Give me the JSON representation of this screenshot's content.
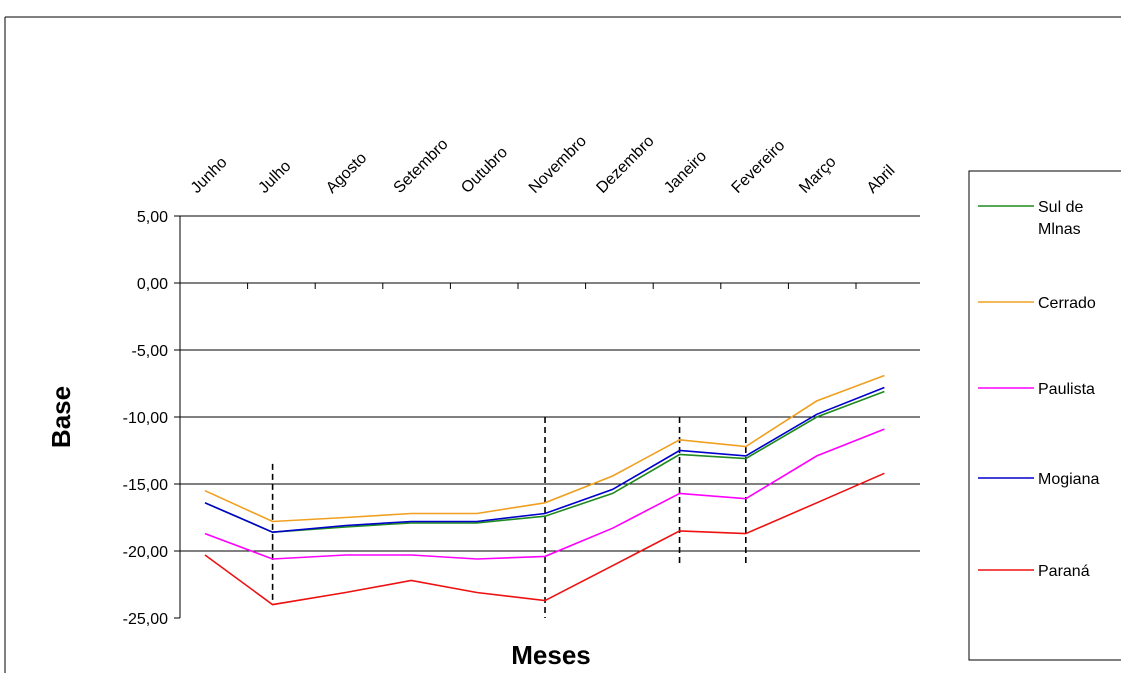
{
  "chart_data": {
    "type": "line",
    "title": "",
    "xlabel": "Meses",
    "ylabel": "Base",
    "categories": [
      "Junho",
      "Julho",
      "Agosto",
      "Setembro",
      "Outubro",
      "Novembro",
      "Dezembro",
      "Janeiro",
      "Fevereiro",
      "Março",
      "Abril"
    ],
    "ylim": [
      -25,
      5
    ],
    "y_ticks": [
      5,
      0,
      -5,
      -10,
      -15,
      -20,
      -25
    ],
    "y_tick_labels": [
      "5,00",
      "0,00",
      "-5,00",
      "-10,00",
      "-15,00",
      "-20,00",
      "-25,00"
    ],
    "grid": true,
    "legend_position": "right",
    "x_positions": [
      0,
      1,
      2,
      3,
      4,
      5,
      6,
      7,
      8,
      9,
      10
    ],
    "series": [
      {
        "name": "Sul de Mlnas",
        "legend_lines": [
          "Sul de",
          "Mlnas"
        ],
        "color": "#1f8a1f",
        "x": [
          0,
          1,
          2.08,
          3.05,
          4.02,
          5.03,
          6.03,
          7.02,
          8.0,
          9.05,
          10.05
        ],
        "values": [
          -16.4,
          -18.6,
          -18.2,
          -17.9,
          -17.9,
          -17.4,
          -15.7,
          -12.8,
          -13.1,
          -10.0,
          -8.1
        ]
      },
      {
        "name": "Cerrado",
        "legend_lines": [
          "Cerrado"
        ],
        "color": "#f0a020",
        "x": [
          0,
          1,
          2.08,
          3.05,
          4.02,
          5.03,
          6.03,
          7.02,
          8.0,
          9.05,
          10.05
        ],
        "values": [
          -15.5,
          -17.8,
          -17.5,
          -17.2,
          -17.2,
          -16.4,
          -14.4,
          -11.7,
          -12.2,
          -8.8,
          -6.9
        ]
      },
      {
        "name": "Paulista",
        "legend_lines": [
          "Paulista"
        ],
        "color": "#ff00ff",
        "x": [
          0,
          1,
          2.08,
          3.05,
          4.02,
          5.03,
          6.03,
          7.02,
          8.0,
          9.05,
          10.05
        ],
        "values": [
          -18.7,
          -20.6,
          -20.3,
          -20.3,
          -20.6,
          -20.4,
          -18.3,
          -15.7,
          -16.1,
          -12.9,
          -10.9
        ]
      },
      {
        "name": "Mogiana",
        "legend_lines": [
          "Mogiana"
        ],
        "color": "#0000cc",
        "x": [
          0,
          1,
          2.08,
          3.05,
          4.02,
          5.03,
          6.03,
          7.02,
          8.0,
          9.05,
          10.05
        ],
        "values": [
          -16.4,
          -18.6,
          -18.1,
          -17.8,
          -17.8,
          -17.2,
          -15.4,
          -12.5,
          -12.9,
          -9.8,
          -7.8
        ]
      },
      {
        "name": "Paraná",
        "legend_lines": [
          "Paraná"
        ],
        "color": "#ee1111",
        "x": [
          0,
          1,
          2.08,
          3.05,
          4.02,
          5.03,
          6.03,
          7.02,
          8.0,
          9.05,
          10.05
        ],
        "values": [
          -20.3,
          -24.0,
          -23.1,
          -22.2,
          -23.1,
          -23.7,
          -21.1,
          -18.5,
          -18.7,
          -16.4,
          -14.2
        ]
      }
    ],
    "vlines": [
      {
        "x": 1,
        "y_top": -13.5,
        "y_bottom": -24.0
      },
      {
        "x": 5.03,
        "y_top": -10.0,
        "y_bottom": -25.0
      },
      {
        "x": 7.02,
        "y_top": -10.0,
        "y_bottom": -21.0
      },
      {
        "x": 8.0,
        "y_top": -10.0,
        "y_bottom": -21.0
      }
    ]
  }
}
